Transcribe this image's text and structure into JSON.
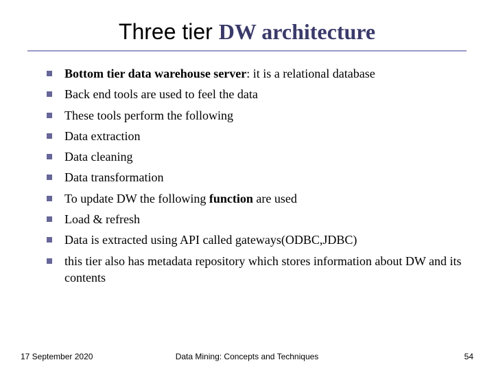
{
  "title": {
    "part1": "Three tier ",
    "part2": "DW architecture"
  },
  "title_fontsize": 32,
  "title_color_part1": "#000000",
  "title_color_part2": "#3a3a6a",
  "rule_color": "#9999cc",
  "bullet_color": "#666699",
  "bullet_size": 8,
  "body_fontsize": 18,
  "background_color": "#ffffff",
  "items": [
    {
      "pre_bold": "Bottom tier data warehouse server",
      "post": ": it is a relational database"
    },
    {
      "text": "Back end tools are used to feel the data"
    },
    {
      "text": "These tools perform the following"
    },
    {
      "text": "Data extraction"
    },
    {
      "text": "Data cleaning"
    },
    {
      "text": "Data transformation"
    },
    {
      "pre": "To update DW the following ",
      "bold": "function",
      "post": " are used"
    },
    {
      "text": "Load & refresh"
    },
    {
      "text": "Data is extracted using API called gateways(ODBC,JDBC)"
    },
    {
      "text": " this tier also has metadata repository which stores information about DW and its contents"
    }
  ],
  "footer": {
    "date": "17 September 2020",
    "center": "Data Mining: Concepts and Techniques",
    "page": "54"
  },
  "footer_fontsize": 12
}
